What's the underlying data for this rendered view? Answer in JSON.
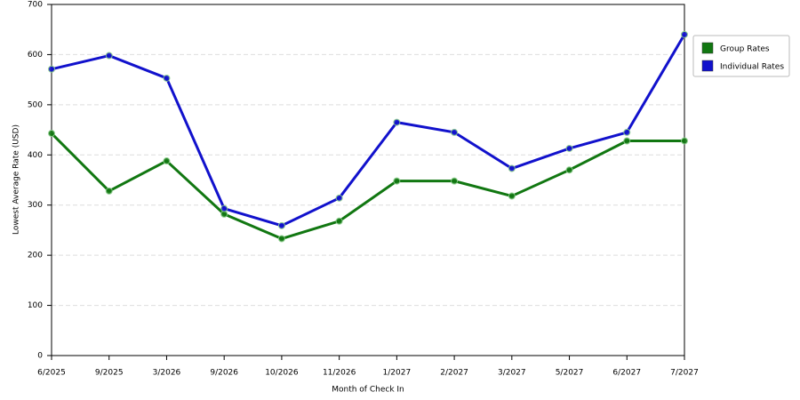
{
  "chart_data": {
    "type": "line",
    "x_label": "Month of Check In",
    "y_label": "Lowest Average Rate (USD)",
    "categories": [
      "6/2025",
      "9/2025",
      "3/2026",
      "9/2026",
      "10/2026",
      "11/2026",
      "1/2027",
      "2/2027",
      "3/2027",
      "5/2027",
      "6/2027",
      "7/2027"
    ],
    "series": [
      {
        "name": "Group Rates",
        "color": "#117711",
        "values": [
          443,
          328,
          388,
          282,
          233,
          268,
          348,
          348,
          318,
          370,
          428,
          428
        ]
      },
      {
        "name": "Individual Rates",
        "color": "#1111cc",
        "values": [
          571,
          598,
          553,
          293,
          259,
          314,
          465,
          445,
          373,
          413,
          445,
          640
        ]
      }
    ],
    "ylim": [
      0,
      700
    ],
    "yticks": [
      0,
      100,
      200,
      300,
      400,
      500,
      600,
      700
    ],
    "grid": true,
    "legend": "right"
  }
}
